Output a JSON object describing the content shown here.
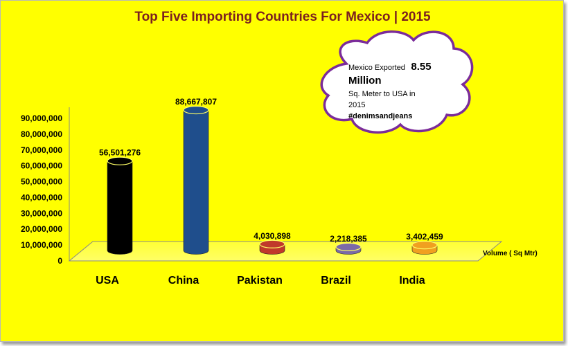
{
  "chart_data": {
    "type": "bar",
    "title": "Top Five Importing Countries For Mexico | 2015",
    "categories": [
      "USA",
      "China",
      "Pakistan",
      "Brazil",
      "India"
    ],
    "values": [
      56501276,
      88667807,
      4030898,
      2218385,
      3402459
    ],
    "value_labels": [
      "56,501,276",
      "88,667,807",
      "4,030,898",
      "2,218,385",
      "3,402,459"
    ],
    "bar_colors": [
      "#000000",
      "#1f4e8c",
      "#c0392b",
      "#7b6aa8",
      "#f0a020"
    ],
    "series_name": "Volume ( Sq Mtr)",
    "ylim": [
      0,
      90000000
    ],
    "yticks": [
      "0",
      "10,000,000",
      "20,000,000",
      "30,000,000",
      "40,000,000",
      "50,000,000",
      "60,000,000",
      "70,000,000",
      "80,000,000",
      "90,000,000"
    ],
    "grid": false,
    "legend": "right",
    "annotation": {
      "line1_prefix": "Mexico Exported",
      "line1_value": "8.55",
      "line2": "Million",
      "line3": "Sq. Meter to USA in",
      "line4": "2015",
      "line5": "#denimsandjeans"
    }
  },
  "colors": {
    "background": "#ffff00",
    "title": "#7b2020",
    "cloud_border": "#7b2c9a",
    "floor": "#ffff66"
  }
}
